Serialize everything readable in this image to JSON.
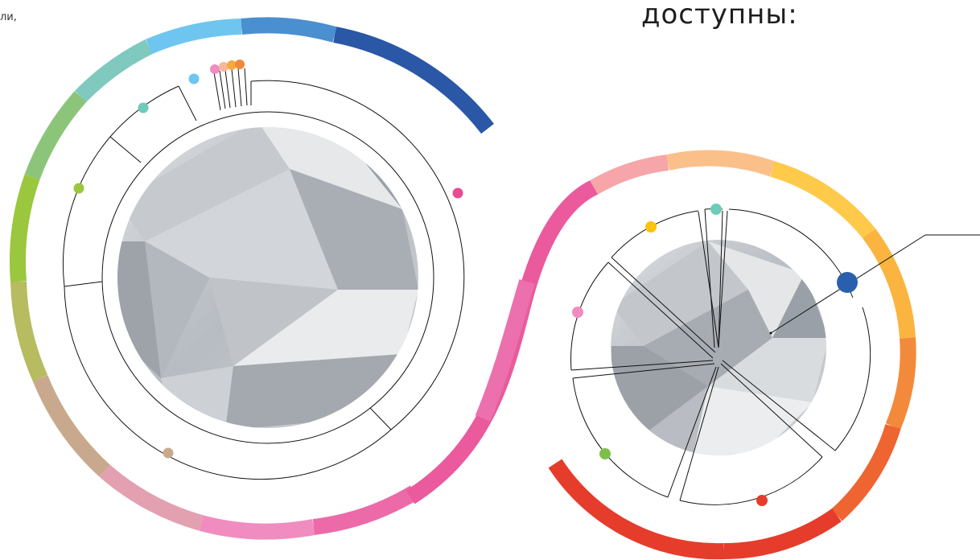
{
  "texts": {
    "corner_text": "ли,",
    "title": "доступны:"
  },
  "colors": {
    "blue": "#2a57a6",
    "sky": "#6ec6f0",
    "teal": "#6fcab9",
    "green": "#9ac73d",
    "tan": "#c9a98d",
    "pink": "#f08cbf",
    "magenta": "#e94b93",
    "peach": "#f8b69a",
    "yellow": "#ffc94a",
    "orange": "#f0893a",
    "red": "#e63c2b"
  },
  "left_diagram": {
    "markers": [
      {
        "name": "sky-marker",
        "color": "sky"
      },
      {
        "name": "teal-marker",
        "color": "teal"
      },
      {
        "name": "green-marker",
        "color": "green"
      },
      {
        "name": "tan-marker",
        "color": "tan"
      },
      {
        "name": "pink-marker",
        "color": "magenta"
      },
      {
        "name": "small-pink-marker",
        "color": "pink"
      },
      {
        "name": "small-peach-marker",
        "color": "peach"
      },
      {
        "name": "small-yellow-marker",
        "color": "yellow"
      },
      {
        "name": "small-orange-marker",
        "color": "orange"
      }
    ]
  },
  "right_diagram": {
    "markers": [
      {
        "name": "teal-marker",
        "color": "teal"
      },
      {
        "name": "yellow-marker",
        "color": "yellow"
      },
      {
        "name": "pink-marker",
        "color": "pink"
      },
      {
        "name": "green-marker",
        "color": "green"
      },
      {
        "name": "red-marker",
        "color": "red"
      },
      {
        "name": "blue-large-marker",
        "color": "blue"
      }
    ]
  }
}
